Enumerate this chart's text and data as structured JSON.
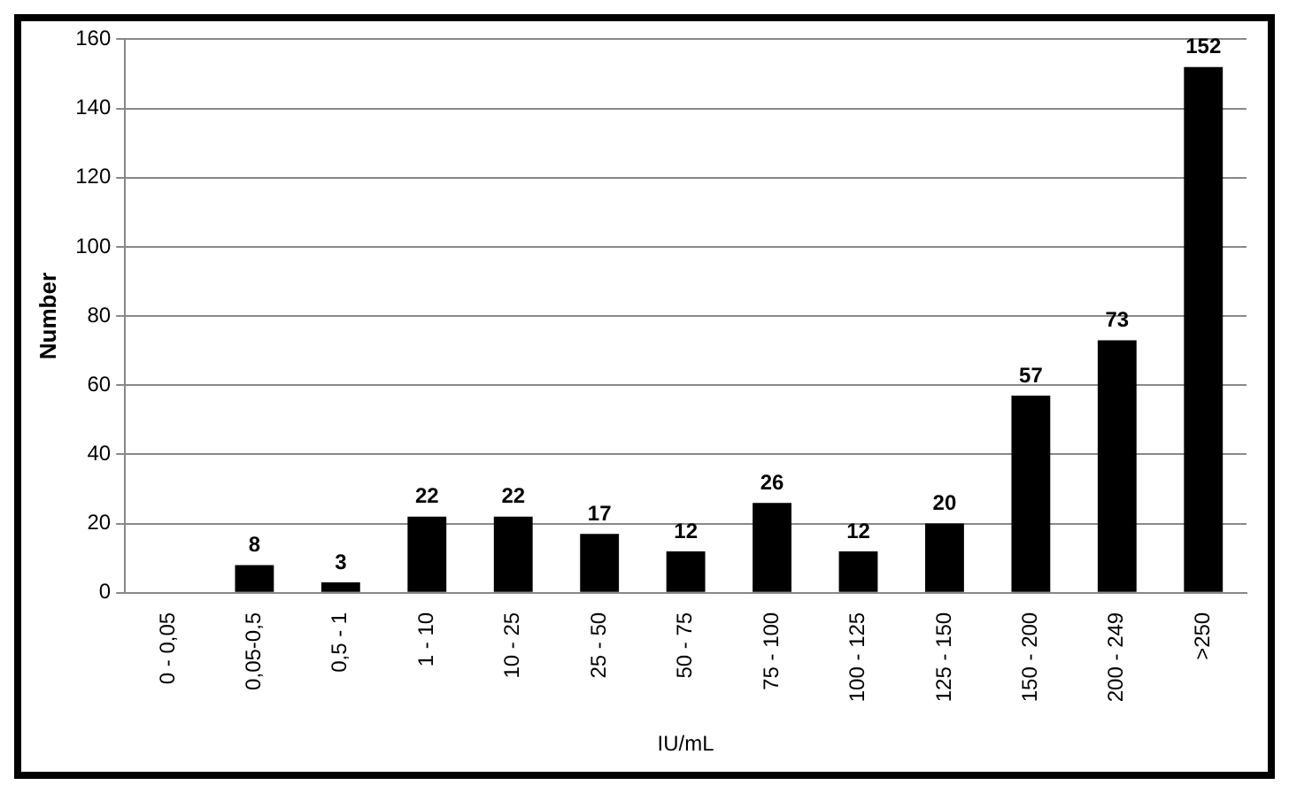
{
  "chart_data": {
    "type": "bar",
    "xlabel": "IU/mL",
    "ylabel": "Number",
    "categories": [
      "0 - 0,05",
      "0,05-0,5",
      "0,5 - 1",
      "1 - 10",
      "10 - 25",
      "25 - 50",
      "50 - 75",
      "75 - 100",
      "100 - 125",
      "125 - 150",
      "150 - 200",
      "200 - 249",
      ">250"
    ],
    "values": [
      0,
      8,
      3,
      22,
      22,
      17,
      12,
      26,
      12,
      20,
      57,
      73,
      152
    ],
    "value_labels": [
      null,
      "8",
      "3",
      "22",
      "22",
      "17",
      "12",
      "26",
      "12",
      "20",
      "57",
      "73",
      "152"
    ],
    "color": "#000000",
    "ylim": [
      0,
      160
    ],
    "yticks": [
      0,
      20,
      40,
      60,
      80,
      100,
      120,
      140,
      160
    ],
    "grid": "y",
    "legend": false
  }
}
